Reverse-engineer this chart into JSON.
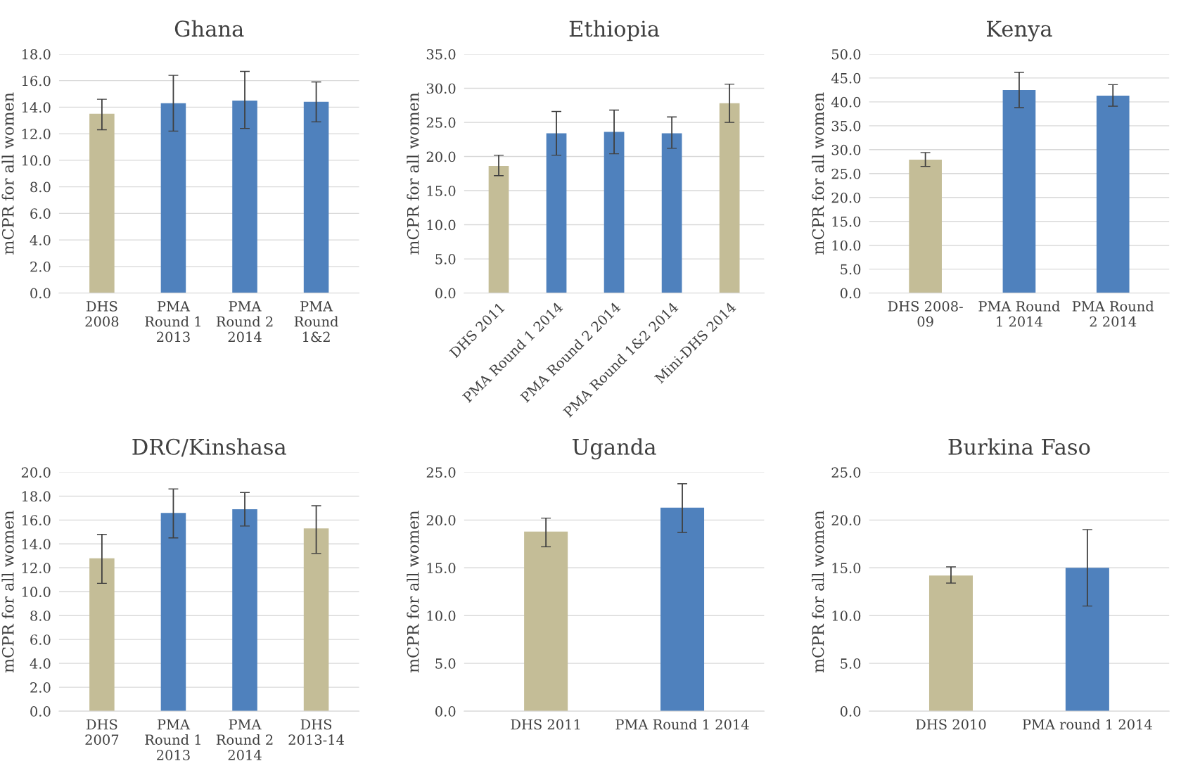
{
  "chart_data": [
    {
      "type": "bar",
      "title": "Ghana",
      "ylabel": "mCPR for all women",
      "categories": [
        "DHS\n2008",
        "PMA\nRound 1\n2013",
        "PMA\nRound 2\n2014",
        "PMA\nRound\n1&2"
      ],
      "values": [
        13.5,
        14.3,
        14.5,
        14.4
      ],
      "colors": [
        "#c4bd97",
        "#4f81bd",
        "#4f81bd",
        "#4f81bd"
      ],
      "errors": [
        [
          12.3,
          14.6
        ],
        [
          12.2,
          16.4
        ],
        [
          12.4,
          16.7
        ],
        [
          12.9,
          15.9
        ]
      ],
      "ylim": [
        0,
        18
      ],
      "yticks": [
        {
          "value": 0,
          "label": "0.0"
        },
        {
          "value": 2,
          "label": "2.0"
        },
        {
          "value": 4,
          "label": "4.0"
        },
        {
          "value": 6,
          "label": "6.0"
        },
        {
          "value": 8,
          "label": "8.0"
        },
        {
          "value": 10,
          "label": "10.0"
        },
        {
          "value": 12,
          "label": "12.0"
        },
        {
          "value": 14,
          "label": "14.0"
        },
        {
          "value": 16,
          "label": "16.0"
        },
        {
          "value": 18,
          "label": "18.0"
        }
      ],
      "grid": "y",
      "legend": false
    },
    {
      "type": "bar",
      "title": "Ethiopia",
      "ylabel": "mCPR for all women",
      "categories": [
        "DHS 2011",
        "PMA Round 1 2014",
        "PMA Round 2 2014",
        "PMA Round 1&2 2014",
        "Mini-DHS 2014"
      ],
      "values": [
        18.6,
        23.4,
        23.6,
        23.4,
        27.8
      ],
      "colors": [
        "#c4bd97",
        "#4f81bd",
        "#4f81bd",
        "#4f81bd",
        "#c4bd97"
      ],
      "errors": [
        [
          17.2,
          20.2
        ],
        [
          20.2,
          26.6
        ],
        [
          20.4,
          26.8
        ],
        [
          21.2,
          25.8
        ],
        [
          25.0,
          30.6
        ]
      ],
      "ylim": [
        0,
        35
      ],
      "yticks": [
        {
          "value": 0,
          "label": "0.0"
        },
        {
          "value": 5,
          "label": "5.0"
        },
        {
          "value": 10,
          "label": "10.0"
        },
        {
          "value": 15,
          "label": "15.0"
        },
        {
          "value": 20,
          "label": "20.0"
        },
        {
          "value": 25,
          "label": "25.0"
        },
        {
          "value": 30,
          "label": "30.0"
        },
        {
          "value": 35,
          "label": "35.0"
        }
      ],
      "grid": "y",
      "legend": false
    },
    {
      "type": "bar",
      "title": "Kenya",
      "ylabel": "mCPR for all women",
      "categories": [
        "DHS 2008-\n09",
        "PMA Round\n1 2014",
        "PMA Round\n2 2014"
      ],
      "values": [
        27.9,
        42.5,
        41.3
      ],
      "colors": [
        "#c4bd97",
        "#4f81bd",
        "#4f81bd"
      ],
      "errors": [
        [
          26.5,
          29.4
        ],
        [
          38.8,
          46.2
        ],
        [
          39.1,
          43.6
        ]
      ],
      "ylim": [
        0,
        50
      ],
      "yticks": [
        {
          "value": 0,
          "label": "0.0"
        },
        {
          "value": 5,
          "label": "5.0"
        },
        {
          "value": 10,
          "label": "10.0"
        },
        {
          "value": 15,
          "label": "15.0"
        },
        {
          "value": 20,
          "label": "20.0"
        },
        {
          "value": 25,
          "label": "25.0"
        },
        {
          "value": 30,
          "label": "30.0"
        },
        {
          "value": 35,
          "label": "35.0"
        },
        {
          "value": 40,
          "label": "40.0"
        },
        {
          "value": 45,
          "label": "45.0"
        },
        {
          "value": 50,
          "label": "50.0"
        }
      ],
      "grid": "y",
      "legend": false
    },
    {
      "type": "bar",
      "title": "DRC/Kinshasa",
      "ylabel": "mCPR for all women",
      "categories": [
        "DHS\n2007",
        "PMA\nRound 1\n2013",
        "PMA\nRound 2\n2014",
        "DHS\n2013-14"
      ],
      "values": [
        12.8,
        16.6,
        16.9,
        15.3
      ],
      "colors": [
        "#c4bd97",
        "#4f81bd",
        "#4f81bd",
        "#c4bd97"
      ],
      "errors": [
        [
          10.7,
          14.8
        ],
        [
          14.5,
          18.6
        ],
        [
          15.5,
          18.3
        ],
        [
          13.2,
          17.2
        ]
      ],
      "ylim": [
        0,
        20
      ],
      "yticks": [
        {
          "value": 0,
          "label": "0.0"
        },
        {
          "value": 2,
          "label": "2.0"
        },
        {
          "value": 4,
          "label": "4.0"
        },
        {
          "value": 6,
          "label": "6.0"
        },
        {
          "value": 8,
          "label": "8.0"
        },
        {
          "value": 10,
          "label": "10.0"
        },
        {
          "value": 12,
          "label": "12.0"
        },
        {
          "value": 14,
          "label": "14.0"
        },
        {
          "value": 16,
          "label": "16.0"
        },
        {
          "value": 18,
          "label": "18.0"
        },
        {
          "value": 20,
          "label": "20.0"
        }
      ],
      "grid": "y",
      "legend": false
    },
    {
      "type": "bar",
      "title": "Uganda",
      "ylabel": "mCPR for all women",
      "categories": [
        "DHS 2011",
        "PMA Round 1 2014"
      ],
      "values": [
        18.8,
        21.3
      ],
      "colors": [
        "#c4bd97",
        "#4f81bd"
      ],
      "errors": [
        [
          17.2,
          20.2
        ],
        [
          18.7,
          23.8
        ]
      ],
      "ylim": [
        0,
        25
      ],
      "yticks": [
        {
          "value": 0,
          "label": "0.0"
        },
        {
          "value": 5,
          "label": "5.0"
        },
        {
          "value": 10,
          "label": "10.0"
        },
        {
          "value": 15,
          "label": "15.0"
        },
        {
          "value": 20,
          "label": "20.0"
        },
        {
          "value": 25,
          "label": "25.0"
        }
      ],
      "grid": "y",
      "legend": false
    },
    {
      "type": "bar",
      "title": "Burkina Faso",
      "ylabel": "mCPR for all women",
      "categories": [
        "DHS 2010",
        "PMA round 1 2014"
      ],
      "values": [
        14.2,
        15.0
      ],
      "colors": [
        "#c4bd97",
        "#4f81bd"
      ],
      "errors": [
        [
          13.4,
          15.1
        ],
        [
          11.0,
          19.0
        ]
      ],
      "ylim": [
        0,
        25
      ],
      "yticks": [
        {
          "value": 0,
          "label": "0.0"
        },
        {
          "value": 5,
          "label": "5.0"
        },
        {
          "value": 10,
          "label": "10.0"
        },
        {
          "value": 15,
          "label": "15.0"
        },
        {
          "value": 20,
          "label": "20.0"
        },
        {
          "value": 25,
          "label": "25.0"
        }
      ],
      "grid": "y",
      "legend": false
    }
  ]
}
